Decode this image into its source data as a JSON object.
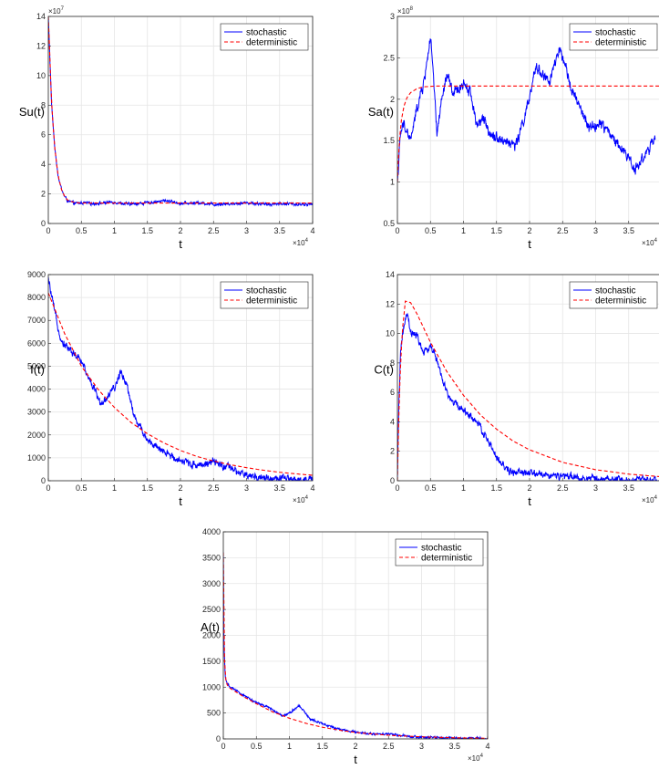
{
  "legend_labels": {
    "stochastic": "stochastic",
    "deterministic": "deterministic"
  },
  "colors": {
    "stochastic": "#0000ff",
    "deterministic": "#ff0000",
    "grid": "#e5e5e5",
    "axis": "#262626"
  },
  "chart_data": [
    {
      "id": "su",
      "type": "line",
      "xlabel": "t",
      "ylabel": "Su(t)",
      "x_multiplier": "×10^4",
      "y_multiplier": "×10^7",
      "xlim": [
        0,
        4
      ],
      "ylim": [
        0,
        14
      ],
      "xticks": [
        "0",
        "0.5",
        "1",
        "1.5",
        "2",
        "2.5",
        "3",
        "3.5",
        "4"
      ],
      "yticks": [
        "0",
        "2",
        "4",
        "6",
        "8",
        "10",
        "12",
        "14"
      ],
      "grid": true,
      "legend": "top-right",
      "series": [
        {
          "name": "stochastic",
          "style": "solid",
          "color": "#0000ff",
          "noise": 0.12,
          "x": [
            0,
            0.05,
            0.1,
            0.15,
            0.2,
            0.25,
            0.3,
            0.4,
            0.5,
            0.7,
            1,
            1.2,
            1.5,
            1.8,
            2,
            2.3,
            2.5,
            2.8,
            3,
            3.3,
            3.5,
            3.8,
            4
          ],
          "y": [
            14,
            8,
            5,
            3.2,
            2.3,
            1.8,
            1.5,
            1.35,
            1.4,
            1.35,
            1.45,
            1.3,
            1.4,
            1.55,
            1.35,
            1.4,
            1.3,
            1.35,
            1.4,
            1.3,
            1.35,
            1.3,
            1.3
          ]
        },
        {
          "name": "deterministic",
          "style": "dashed",
          "color": "#ff0000",
          "noise": 0,
          "x": [
            0,
            0.05,
            0.1,
            0.15,
            0.2,
            0.25,
            0.3,
            0.4,
            0.5,
            1,
            2,
            3,
            4
          ],
          "y": [
            14,
            8,
            5,
            3.2,
            2.3,
            1.8,
            1.55,
            1.42,
            1.38,
            1.38,
            1.38,
            1.38,
            1.38
          ]
        }
      ]
    },
    {
      "id": "sa",
      "type": "line",
      "xlabel": "t",
      "ylabel": "Sa(t)",
      "x_multiplier": "×10^4",
      "y_multiplier": "×10^8",
      "xlim": [
        0,
        4
      ],
      "ylim": [
        0.5,
        3
      ],
      "xticks": [
        "0",
        "0.5",
        "1",
        "1.5",
        "2",
        "2.5",
        "3",
        "3.5"
      ],
      "yticks": [
        "0.5",
        "1",
        "1.5",
        "2",
        "2.5",
        "3"
      ],
      "grid": true,
      "legend": "top-right",
      "series": [
        {
          "name": "stochastic",
          "style": "solid",
          "color": "#0000ff",
          "noise": 0.08,
          "x": [
            0,
            0.05,
            0.1,
            0.2,
            0.3,
            0.4,
            0.5,
            0.55,
            0.6,
            0.65,
            0.75,
            0.85,
            1,
            1.1,
            1.2,
            1.3,
            1.4,
            1.6,
            1.8,
            2,
            2.1,
            2.2,
            2.3,
            2.45,
            2.55,
            2.7,
            2.9,
            3.1,
            3.3,
            3.5,
            3.6,
            3.8,
            3.9
          ],
          "y": [
            1.0,
            1.6,
            1.7,
            1.5,
            1.9,
            2.2,
            2.75,
            2.2,
            1.55,
            1.9,
            2.3,
            2.05,
            2.2,
            2.1,
            1.7,
            1.75,
            1.6,
            1.5,
            1.45,
            2.0,
            2.4,
            2.3,
            2.2,
            2.6,
            2.35,
            2.0,
            1.65,
            1.7,
            1.5,
            1.3,
            1.15,
            1.4,
            1.5
          ]
        },
        {
          "name": "deterministic",
          "style": "dashed",
          "color": "#ff0000",
          "noise": 0,
          "x": [
            0,
            0.03,
            0.06,
            0.1,
            0.15,
            0.2,
            0.3,
            0.4,
            0.6,
            1,
            2,
            3,
            4
          ],
          "y": [
            1.0,
            1.5,
            1.75,
            1.92,
            2.03,
            2.08,
            2.13,
            2.15,
            2.16,
            2.16,
            2.16,
            2.16,
            2.16
          ]
        }
      ]
    },
    {
      "id": "i",
      "type": "line",
      "xlabel": "t",
      "ylabel": "I(t)",
      "x_multiplier": "×10^4",
      "y_multiplier": "",
      "xlim": [
        0,
        4
      ],
      "ylim": [
        0,
        9000
      ],
      "xticks": [
        "0",
        "0.5",
        "1",
        "1.5",
        "2",
        "2.5",
        "3",
        "3.5",
        "4"
      ],
      "yticks": [
        "0",
        "1000",
        "2000",
        "3000",
        "4000",
        "5000",
        "6000",
        "7000",
        "8000",
        "9000"
      ],
      "grid": true,
      "legend": "top-right",
      "series": [
        {
          "name": "stochastic",
          "style": "solid",
          "color": "#0000ff",
          "noise": 200,
          "x": [
            0,
            0.1,
            0.2,
            0.3,
            0.5,
            0.7,
            0.8,
            0.9,
            1,
            1.1,
            1.2,
            1.3,
            1.5,
            1.7,
            2,
            2.2,
            2.4,
            2.5,
            2.7,
            3,
            3.5,
            4
          ],
          "y": [
            8800,
            7300,
            6100,
            5800,
            5200,
            4000,
            3300,
            3700,
            4000,
            4800,
            4100,
            2800,
            1800,
            1300,
            900,
            700,
            750,
            800,
            600,
            200,
            80,
            40
          ]
        },
        {
          "name": "deterministic",
          "style": "dashed",
          "color": "#ff0000",
          "noise": 0,
          "x": [
            0,
            0.25,
            0.5,
            0.75,
            1,
            1.25,
            1.5,
            1.75,
            2,
            2.25,
            2.5,
            2.75,
            3,
            3.25,
            3.5,
            3.75,
            4
          ],
          "y": [
            8200,
            6400,
            5000,
            4000,
            3200,
            2550,
            2050,
            1650,
            1320,
            1060,
            860,
            700,
            570,
            460,
            370,
            300,
            240
          ]
        }
      ]
    },
    {
      "id": "c",
      "type": "line",
      "xlabel": "t",
      "ylabel": "C(t)",
      "x_multiplier": "×10^4",
      "y_multiplier": "",
      "xlim": [
        0,
        4
      ],
      "ylim": [
        0,
        14
      ],
      "xticks": [
        "0",
        "0.5",
        "1",
        "1.5",
        "2",
        "2.5",
        "3",
        "3.5"
      ],
      "yticks": [
        "0",
        "2",
        "4",
        "6",
        "8",
        "10",
        "12",
        "14"
      ],
      "grid": true,
      "legend": "top-right",
      "series": [
        {
          "name": "stochastic",
          "style": "solid",
          "color": "#0000ff",
          "noise": 0.3,
          "x": [
            0,
            0.02,
            0.05,
            0.1,
            0.15,
            0.2,
            0.3,
            0.4,
            0.5,
            0.6,
            0.7,
            0.8,
            1,
            1.2,
            1.4,
            1.5,
            1.7,
            2,
            2.5,
            3,
            3.5,
            4
          ],
          "y": [
            0,
            5,
            9,
            10.5,
            11.3,
            10,
            9.8,
            8.6,
            9.2,
            8.2,
            6.5,
            5.5,
            4.8,
            4,
            2.5,
            1.5,
            0.6,
            0.5,
            0.3,
            0.1,
            0.05,
            0.02
          ]
        },
        {
          "name": "deterministic",
          "style": "dashed",
          "color": "#ff0000",
          "noise": 0,
          "x": [
            0,
            0.03,
            0.07,
            0.12,
            0.2,
            0.3,
            0.5,
            0.75,
            1,
            1.25,
            1.5,
            1.75,
            2,
            2.5,
            3,
            3.5,
            4
          ],
          "y": [
            0,
            6,
            10,
            12.2,
            12.1,
            11.3,
            9.4,
            7.4,
            5.8,
            4.5,
            3.5,
            2.7,
            2.1,
            1.25,
            0.75,
            0.45,
            0.27
          ]
        }
      ]
    },
    {
      "id": "a",
      "type": "line",
      "xlabel": "t",
      "ylabel": "A(t)",
      "x_multiplier": "×10^4",
      "y_multiplier": "",
      "xlim": [
        0,
        4
      ],
      "ylim": [
        0,
        4000
      ],
      "xticks": [
        "0",
        "0.5",
        "1",
        "1.5",
        "2",
        "2.5",
        "3",
        "3.5",
        "4"
      ],
      "yticks": [
        "0",
        "500",
        "1000",
        "1500",
        "2000",
        "2500",
        "3000",
        "3500",
        "4000"
      ],
      "grid": true,
      "legend": "top-right",
      "series": [
        {
          "name": "stochastic",
          "style": "solid",
          "color": "#0000ff",
          "noise": 25,
          "x": [
            0,
            0.01,
            0.03,
            0.05,
            0.1,
            0.3,
            0.5,
            0.7,
            0.9,
            1,
            1.15,
            1.3,
            1.5,
            1.7,
            2,
            2.3,
            2.5,
            2.8,
            3,
            3.5,
            4
          ],
          "y": [
            3600,
            1800,
            1200,
            1100,
            1000,
            850,
            700,
            600,
            450,
            500,
            650,
            400,
            300,
            200,
            130,
            90,
            100,
            50,
            30,
            15,
            10
          ]
        },
        {
          "name": "deterministic",
          "style": "dashed",
          "color": "#ff0000",
          "noise": 0,
          "x": [
            0,
            0.01,
            0.03,
            0.05,
            0.1,
            0.3,
            0.5,
            0.75,
            1,
            1.25,
            1.5,
            1.75,
            2,
            2.5,
            3,
            3.5,
            4
          ],
          "y": [
            3600,
            1800,
            1200,
            1060,
            980,
            820,
            680,
            520,
            400,
            300,
            225,
            170,
            125,
            70,
            40,
            22,
            12
          ]
        }
      ]
    }
  ]
}
